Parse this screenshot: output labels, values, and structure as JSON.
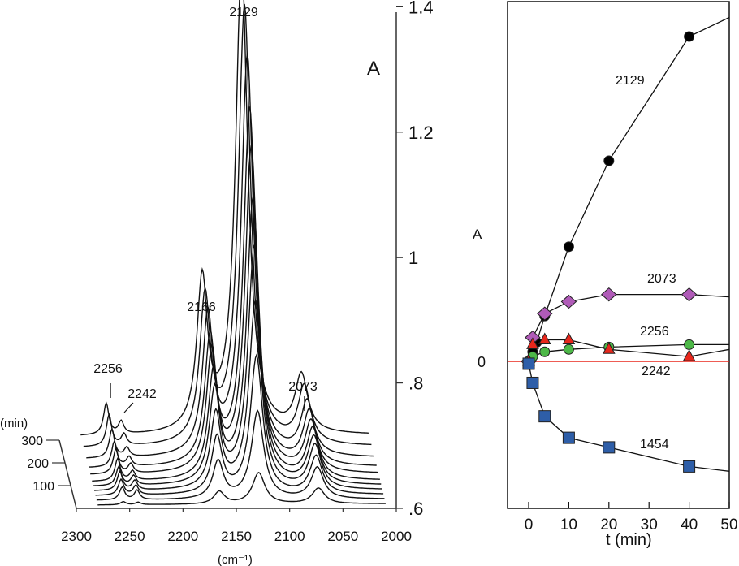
{
  "chart_data": [
    {
      "type": "line",
      "title": "",
      "xlabel": "(cm⁻¹)",
      "ylabel": "A",
      "depth_label": "(min)",
      "xlim": [
        2300,
        2000
      ],
      "ylim": [
        0.6,
        1.4
      ],
      "x_ticks": [
        "2300",
        "2250",
        "2200",
        "2150",
        "2100",
        "2050",
        "2000"
      ],
      "y_ticks": [
        ".6",
        ".8",
        "1",
        "1.2",
        "1.4"
      ],
      "depth_ticks": [
        "300",
        "200",
        "100"
      ],
      "peak_labels": [
        "2256",
        "2242",
        "2166",
        "2129",
        "2073"
      ],
      "spectra": [
        {
          "time_min": 0,
          "peaks": {
            "2256": 0.005,
            "2242": 0.004,
            "2166": 0.02,
            "2129": 0.05,
            "2073": 0.025
          }
        },
        {
          "time_min": 20,
          "peaks": {
            "2256": 0.02,
            "2242": 0.015,
            "2166": 0.06,
            "2129": 0.14,
            "2073": 0.05
          }
        },
        {
          "time_min": 40,
          "peaks": {
            "2256": 0.025,
            "2242": 0.015,
            "2166": 0.09,
            "2129": 0.22,
            "2073": 0.06
          }
        },
        {
          "time_min": 60,
          "peaks": {
            "2256": 0.03,
            "2242": 0.015,
            "2166": 0.12,
            "2129": 0.3,
            "2073": 0.07
          }
        },
        {
          "time_min": 80,
          "peaks": {
            "2256": 0.03,
            "2242": 0.015,
            "2166": 0.15,
            "2129": 0.38,
            "2073": 0.075
          }
        },
        {
          "time_min": 100,
          "peaks": {
            "2256": 0.035,
            "2242": 0.015,
            "2166": 0.17,
            "2129": 0.45,
            "2073": 0.08
          }
        },
        {
          "time_min": 130,
          "peaks": {
            "2256": 0.04,
            "2242": 0.015,
            "2166": 0.19,
            "2129": 0.52,
            "2073": 0.08
          }
        },
        {
          "time_min": 160,
          "peaks": {
            "2256": 0.04,
            "2242": 0.015,
            "2166": 0.2,
            "2129": 0.57,
            "2073": 0.085
          }
        },
        {
          "time_min": 200,
          "peaks": {
            "2256": 0.045,
            "2242": 0.015,
            "2166": 0.22,
            "2129": 0.64,
            "2073": 0.085
          }
        },
        {
          "time_min": 250,
          "peaks": {
            "2256": 0.05,
            "2242": 0.018,
            "2166": 0.23,
            "2129": 0.7,
            "2073": 0.09
          }
        },
        {
          "time_min": 300,
          "peaks": {
            "2256": 0.05,
            "2242": 0.02,
            "2166": 0.24,
            "2129": 0.75,
            "2073": 0.09
          }
        }
      ]
    },
    {
      "type": "line",
      "title": "",
      "xlabel": "t (min)",
      "ylabel": "A",
      "xlim": [
        -5,
        50
      ],
      "ylim": [
        -0.45,
        1.4
      ],
      "x_ticks": [
        0,
        10,
        20,
        30,
        40,
        50
      ],
      "y_ticks": [
        "0"
      ],
      "zero_line_color": "#e8271c",
      "series": [
        {
          "name": "2129",
          "color": "#000000",
          "marker": "circle",
          "x": [
            0,
            1,
            2,
            4,
            10,
            20,
            40,
            50
          ],
          "y": [
            0,
            0.04,
            0.08,
            0.19,
            0.48,
            0.84,
            1.36,
            1.44
          ]
        },
        {
          "name": "2073",
          "color": "#b05bb8",
          "marker": "diamond",
          "x": [
            0,
            1,
            4,
            10,
            20,
            40,
            50
          ],
          "y": [
            0,
            0.1,
            0.2,
            0.25,
            0.28,
            0.28,
            0.27
          ]
        },
        {
          "name": "2256",
          "color": "#4db848",
          "marker": "circle",
          "x": [
            0,
            1,
            4,
            10,
            20,
            40,
            50
          ],
          "y": [
            0,
            0.02,
            0.04,
            0.05,
            0.06,
            0.07,
            0.07
          ]
        },
        {
          "name": "2242",
          "color": "#e8271c",
          "marker": "triangle",
          "x": [
            0,
            1,
            4,
            10,
            20,
            40,
            50
          ],
          "y": [
            0,
            0.07,
            0.09,
            0.09,
            0.05,
            0.02,
            0.05
          ]
        },
        {
          "name": "1454",
          "color": "#2e5ea8",
          "marker": "square",
          "x": [
            0,
            1,
            4,
            10,
            20,
            40,
            50
          ],
          "y": [
            -0.01,
            -0.09,
            -0.23,
            -0.32,
            -0.36,
            -0.44,
            -0.46
          ]
        }
      ]
    }
  ]
}
